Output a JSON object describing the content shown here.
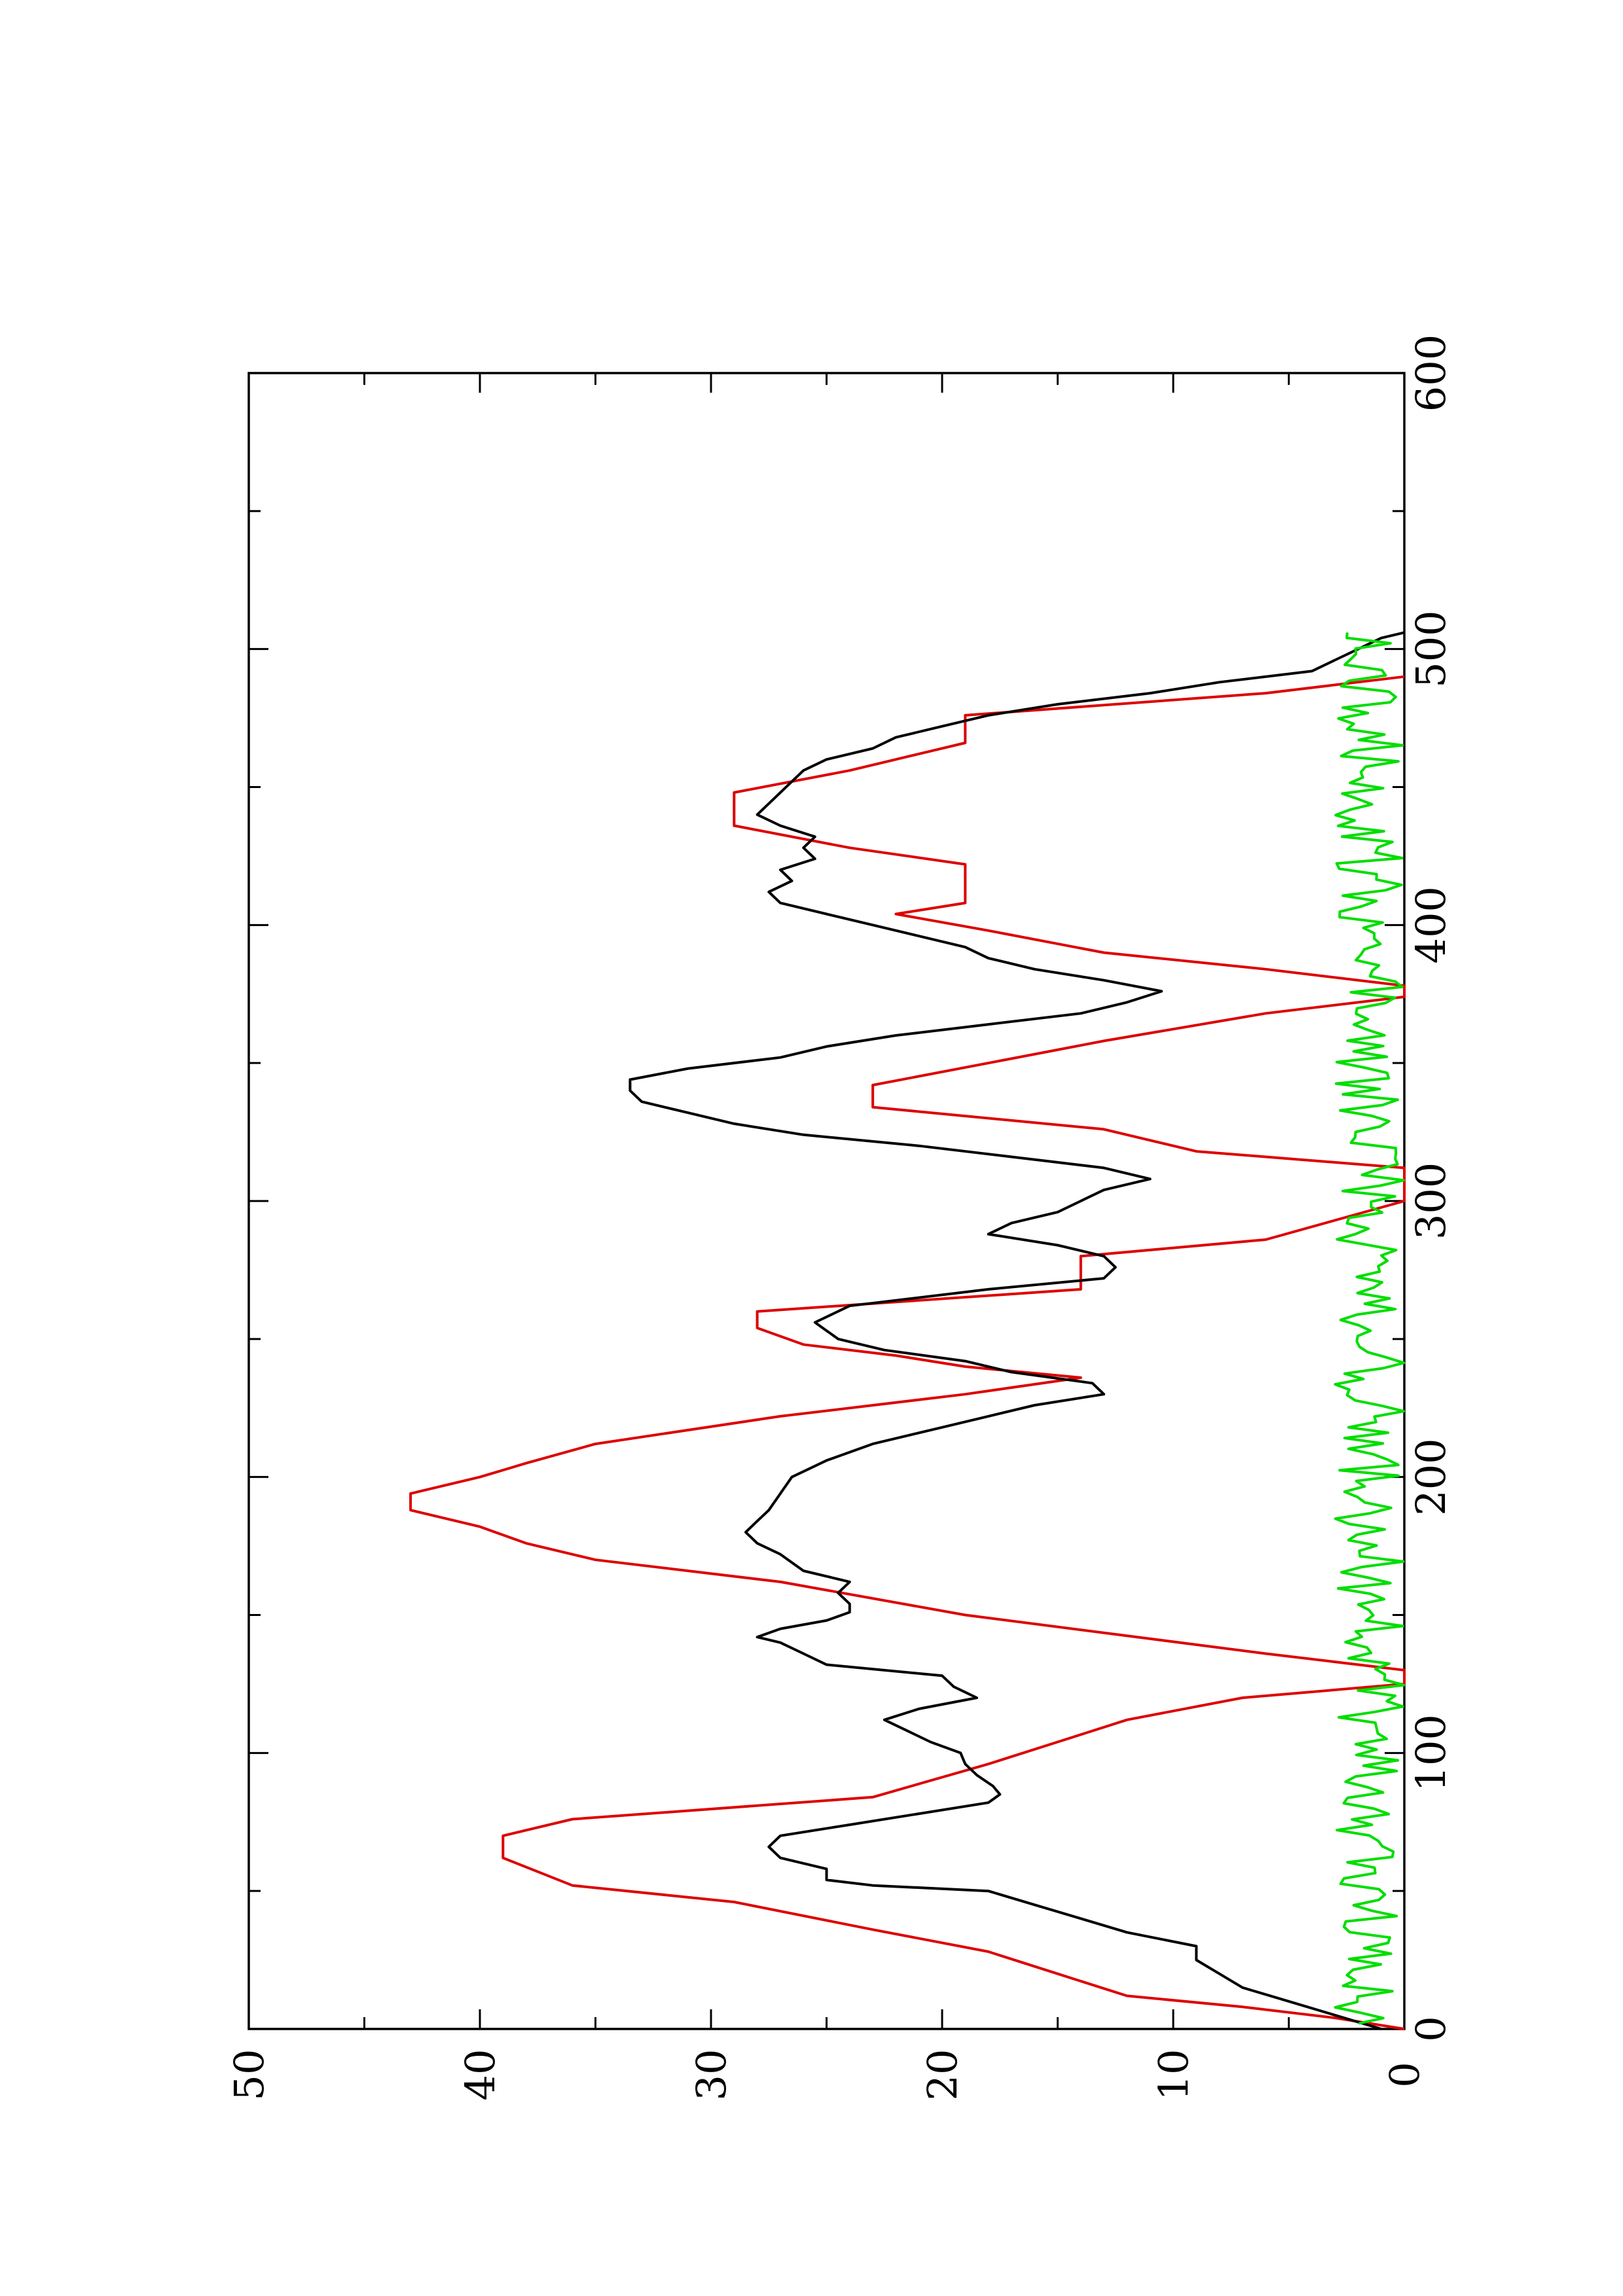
{
  "chart_data": {
    "type": "line",
    "orientation": "rotated-90-ccw",
    "xlim": [
      0,
      600
    ],
    "ylim": [
      0,
      50
    ],
    "x_ticks": [
      "0",
      "100",
      "200",
      "300",
      "400",
      "500",
      "600"
    ],
    "y_ticks": [
      "0",
      "10",
      "20",
      "30",
      "40",
      "50"
    ],
    "grid": false,
    "series": [
      {
        "color": "#dd0000",
        "step": true,
        "points": [
          [
            0,
            0
          ],
          [
            4,
            3
          ],
          [
            8,
            7
          ],
          [
            12,
            12
          ],
          [
            20,
            15
          ],
          [
            28,
            18
          ],
          [
            36,
            23
          ],
          [
            46,
            29
          ],
          [
            52,
            36
          ],
          [
            62,
            39
          ],
          [
            70,
            39
          ],
          [
            76,
            36
          ],
          [
            84,
            23
          ],
          [
            96,
            18
          ],
          [
            104,
            15
          ],
          [
            112,
            12
          ],
          [
            120,
            7
          ],
          [
            125,
            0
          ],
          [
            130,
            0
          ],
          [
            136,
            6
          ],
          [
            150,
            19
          ],
          [
            162,
            27
          ],
          [
            170,
            35
          ],
          [
            176,
            38
          ],
          [
            182,
            40
          ],
          [
            188,
            43
          ],
          [
            194,
            43
          ],
          [
            200,
            40
          ],
          [
            205,
            38
          ],
          [
            212,
            35
          ],
          [
            222,
            27
          ],
          [
            230,
            19
          ],
          [
            236,
            14
          ],
          [
            240,
            19
          ],
          [
            244,
            22
          ],
          [
            248,
            26
          ],
          [
            254,
            28
          ],
          [
            260,
            28
          ],
          [
            268,
            14
          ],
          [
            280,
            14
          ],
          [
            286,
            6
          ],
          [
            300,
            0
          ],
          [
            312,
            0
          ],
          [
            318,
            9
          ],
          [
            326,
            13
          ],
          [
            334,
            23
          ],
          [
            342,
            23
          ],
          [
            350,
            18
          ],
          [
            358,
            13
          ],
          [
            368,
            6
          ],
          [
            374,
            0
          ],
          [
            378,
            0
          ],
          [
            384,
            6
          ],
          [
            390,
            13
          ],
          [
            398,
            18
          ],
          [
            404,
            22
          ],
          [
            408,
            19
          ],
          [
            414,
            19
          ],
          [
            422,
            19
          ],
          [
            428,
            24
          ],
          [
            436,
            29
          ],
          [
            448,
            29
          ],
          [
            456,
            24
          ],
          [
            466,
            19
          ],
          [
            476,
            19
          ],
          [
            484,
            6
          ],
          [
            490,
            0
          ]
        ]
      },
      {
        "color": "#000000",
        "step": false,
        "points": [
          [
            0,
            1
          ],
          [
            5,
            3
          ],
          [
            10,
            5
          ],
          [
            15,
            7
          ],
          [
            20,
            8
          ],
          [
            25,
            9
          ],
          [
            30,
            9
          ],
          [
            35,
            12
          ],
          [
            40,
            14
          ],
          [
            45,
            16
          ],
          [
            50,
            18
          ],
          [
            52,
            23
          ],
          [
            54,
            25
          ],
          [
            58,
            25
          ],
          [
            62,
            27
          ],
          [
            66,
            27.5
          ],
          [
            70,
            27
          ],
          [
            74,
            24
          ],
          [
            78,
            21
          ],
          [
            82,
            18
          ],
          [
            85,
            17.5
          ],
          [
            88,
            17.8
          ],
          [
            92,
            18.5
          ],
          [
            96,
            19
          ],
          [
            100,
            19.2
          ],
          [
            104,
            20.5
          ],
          [
            108,
            21.5
          ],
          [
            112,
            22.5
          ],
          [
            116,
            21
          ],
          [
            120,
            18.5
          ],
          [
            124,
            19.5
          ],
          [
            128,
            20
          ],
          [
            132,
            25
          ],
          [
            136,
            26
          ],
          [
            140,
            27
          ],
          [
            142,
            28
          ],
          [
            145,
            27
          ],
          [
            148,
            25
          ],
          [
            151,
            24
          ],
          [
            154,
            24
          ],
          [
            158,
            24.5
          ],
          [
            162,
            24
          ],
          [
            166,
            26
          ],
          [
            172,
            27
          ],
          [
            176,
            28
          ],
          [
            180,
            28.5
          ],
          [
            184,
            28
          ],
          [
            188,
            27.5
          ],
          [
            194,
            27
          ],
          [
            200,
            26.5
          ],
          [
            206,
            25
          ],
          [
            212,
            23
          ],
          [
            218,
            20
          ],
          [
            222,
            18
          ],
          [
            226,
            16
          ],
          [
            230,
            13
          ],
          [
            234,
            13.5
          ],
          [
            238,
            17
          ],
          [
            242,
            19
          ],
          [
            246,
            22.5
          ],
          [
            250,
            24.5
          ],
          [
            256,
            25.5
          ],
          [
            262,
            24
          ],
          [
            268,
            18
          ],
          [
            272,
            13
          ],
          [
            276,
            12.5
          ],
          [
            280,
            13
          ],
          [
            284,
            15
          ],
          [
            288,
            18
          ],
          [
            292,
            17
          ],
          [
            296,
            15
          ],
          [
            300,
            14
          ],
          [
            304,
            13
          ],
          [
            308,
            11
          ],
          [
            312,
            13
          ],
          [
            316,
            17
          ],
          [
            320,
            21
          ],
          [
            324,
            26
          ],
          [
            328,
            29
          ],
          [
            332,
            31
          ],
          [
            336,
            33
          ],
          [
            340,
            33.5
          ],
          [
            344,
            33.5
          ],
          [
            348,
            31
          ],
          [
            352,
            27
          ],
          [
            356,
            25
          ],
          [
            360,
            22
          ],
          [
            364,
            18
          ],
          [
            368,
            14
          ],
          [
            372,
            12
          ],
          [
            376,
            10.5
          ],
          [
            380,
            13
          ],
          [
            384,
            16
          ],
          [
            388,
            18
          ],
          [
            392,
            19
          ],
          [
            396,
            21
          ],
          [
            400,
            23
          ],
          [
            404,
            25
          ],
          [
            408,
            27
          ],
          [
            412,
            27.5
          ],
          [
            416,
            26.5
          ],
          [
            420,
            27
          ],
          [
            424,
            25.5
          ],
          [
            428,
            26
          ],
          [
            432,
            25.5
          ],
          [
            436,
            27
          ],
          [
            440,
            28
          ],
          [
            444,
            27.5
          ],
          [
            448,
            27
          ],
          [
            452,
            26.5
          ],
          [
            456,
            26
          ],
          [
            460,
            25
          ],
          [
            464,
            23
          ],
          [
            468,
            22
          ],
          [
            472,
            20
          ],
          [
            476,
            18
          ],
          [
            480,
            15
          ],
          [
            484,
            11
          ],
          [
            488,
            8
          ],
          [
            492,
            4
          ],
          [
            496,
            3
          ],
          [
            500,
            2
          ],
          [
            504,
            1
          ],
          [
            506,
            0
          ]
        ]
      },
      {
        "color": "#00dd00",
        "step": false,
        "noise": true,
        "baseline": 1.5,
        "amplitude": 1.5,
        "x_range": [
          2,
          506
        ],
        "samples": 260
      }
    ]
  }
}
